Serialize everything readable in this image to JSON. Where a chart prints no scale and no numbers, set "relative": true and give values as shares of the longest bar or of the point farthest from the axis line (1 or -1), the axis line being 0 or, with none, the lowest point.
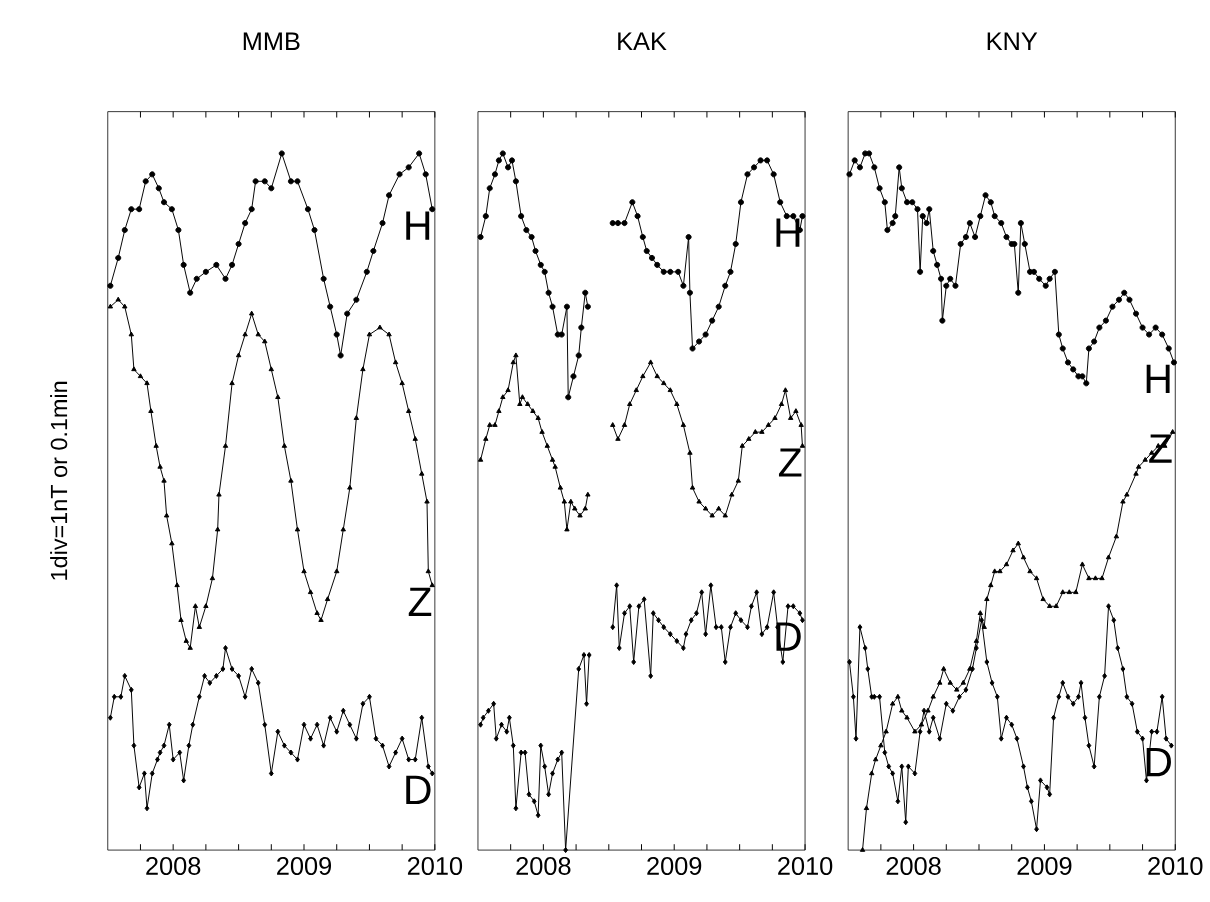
{
  "chart_data": [
    {
      "type": "line",
      "title": "MMB",
      "ylabel": "1div=1nT or 0.1min",
      "relative": true,
      "xlim": [
        2007.5,
        2010.0
      ],
      "xticks": [
        {
          "value": 2007.75,
          "label": null
        },
        2008,
        {
          "value": 2008.25,
          "label": null
        },
        {
          "value": 2008.5,
          "label": null
        },
        {
          "value": 2008.75,
          "label": null
        },
        2009,
        {
          "value": 2009.25,
          "label": null
        },
        {
          "value": 2009.5,
          "label": null
        },
        {
          "value": 2009.75,
          "label": null
        },
        2010
      ],
      "series": [
        {
          "name": "H",
          "color": "#000000",
          "marker": "circle",
          "x": [
            2007.52,
            2007.58,
            2007.63,
            2007.68,
            2007.74,
            2007.79,
            2007.84,
            2007.89,
            2007.93,
            2007.99,
            2008.04,
            2008.08,
            2008.13,
            2008.18,
            2008.25,
            2008.33,
            2008.4,
            2008.45,
            2008.5,
            2008.55,
            2008.6,
            2008.63,
            2008.7,
            2008.75,
            2008.83,
            2008.9,
            2008.95,
            2009.03,
            2009.08,
            2009.15,
            2009.2,
            2009.25,
            2009.28,
            2009.33,
            2009.4,
            2009.48,
            2009.53,
            2009.6,
            2009.65,
            2009.73,
            2009.8,
            2009.88,
            2009.93,
            2009.98
          ],
          "values": [
            0.81,
            0.85,
            0.89,
            0.92,
            0.92,
            0.96,
            0.97,
            0.95,
            0.93,
            0.92,
            0.89,
            0.84,
            0.8,
            0.82,
            0.83,
            0.84,
            0.82,
            0.84,
            0.87,
            0.9,
            0.92,
            0.96,
            0.96,
            0.95,
            1.0,
            0.96,
            0.96,
            0.92,
            0.89,
            0.82,
            0.78,
            0.74,
            0.71,
            0.77,
            0.79,
            0.83,
            0.86,
            0.9,
            0.94,
            0.97,
            0.98,
            1.0,
            0.97,
            0.92
          ]
        },
        {
          "name": "Z",
          "color": "#000000",
          "marker": "triangle",
          "x": [
            2007.52,
            2007.58,
            2007.63,
            2007.68,
            2007.7,
            2007.75,
            2007.8,
            2007.83,
            2007.87,
            2007.9,
            2007.93,
            2007.95,
            2007.99,
            2008.03,
            2008.06,
            2008.1,
            2008.13,
            2008.17,
            2008.2,
            2008.25,
            2008.3,
            2008.34,
            2008.35,
            2008.4,
            2008.45,
            2008.5,
            2008.55,
            2008.6,
            2008.65,
            2008.7,
            2008.75,
            2008.8,
            2008.85,
            2008.9,
            2008.95,
            2009.0,
            2009.05,
            2009.1,
            2009.13,
            2009.18,
            2009.25,
            2009.3,
            2009.35,
            2009.4,
            2009.45,
            2009.5,
            2009.58,
            2009.65,
            2009.7,
            2009.75,
            2009.8,
            2009.85,
            2009.9,
            2009.94,
            2009.95,
            2009.98
          ],
          "values": [
            0.78,
            0.79,
            0.78,
            0.74,
            0.69,
            0.68,
            0.67,
            0.63,
            0.58,
            0.55,
            0.53,
            0.48,
            0.44,
            0.38,
            0.33,
            0.3,
            0.29,
            0.35,
            0.32,
            0.35,
            0.39,
            0.46,
            0.51,
            0.58,
            0.67,
            0.71,
            0.74,
            0.77,
            0.74,
            0.73,
            0.69,
            0.65,
            0.58,
            0.53,
            0.46,
            0.4,
            0.37,
            0.34,
            0.33,
            0.36,
            0.4,
            0.46,
            0.52,
            0.62,
            0.69,
            0.74,
            0.75,
            0.74,
            0.7,
            0.67,
            0.63,
            0.59,
            0.54,
            0.5,
            0.4,
            0.38
          ]
        },
        {
          "name": "D",
          "color": "#000000",
          "marker": "diamond",
          "x": [
            2007.52,
            2007.55,
            2007.6,
            2007.63,
            2007.68,
            2007.7,
            2007.74,
            2007.78,
            2007.8,
            2007.84,
            2007.88,
            2007.9,
            2007.93,
            2007.97,
            2008.0,
            2008.05,
            2008.08,
            2008.12,
            2008.15,
            2008.2,
            2008.24,
            2008.28,
            2008.33,
            2008.38,
            2008.4,
            2008.45,
            2008.5,
            2008.55,
            2008.6,
            2008.65,
            2008.7,
            2008.75,
            2008.8,
            2008.85,
            2008.9,
            2008.95,
            2009.0,
            2009.05,
            2009.1,
            2009.15,
            2009.2,
            2009.25,
            2009.3,
            2009.35,
            2009.4,
            2009.45,
            2009.5,
            2009.55,
            2009.6,
            2009.65,
            2009.7,
            2009.75,
            2009.8,
            2009.85,
            2009.9,
            2009.95,
            2009.98
          ],
          "values": [
            0.19,
            0.22,
            0.22,
            0.25,
            0.23,
            0.15,
            0.09,
            0.11,
            0.06,
            0.11,
            0.13,
            0.14,
            0.15,
            0.18,
            0.13,
            0.14,
            0.1,
            0.15,
            0.18,
            0.22,
            0.25,
            0.24,
            0.25,
            0.26,
            0.29,
            0.26,
            0.25,
            0.22,
            0.26,
            0.24,
            0.18,
            0.11,
            0.17,
            0.15,
            0.14,
            0.13,
            0.18,
            0.16,
            0.18,
            0.15,
            0.19,
            0.17,
            0.2,
            0.18,
            0.16,
            0.21,
            0.22,
            0.16,
            0.15,
            0.12,
            0.14,
            0.16,
            0.13,
            0.13,
            0.19,
            0.12,
            0.11
          ]
        }
      ]
    },
    {
      "type": "line",
      "title": "KAK",
      "relative": true,
      "xlim": [
        2007.5,
        2010.0
      ],
      "xticks": [
        {
          "value": 2007.75,
          "label": null
        },
        2008,
        {
          "value": 2008.25,
          "label": null
        },
        {
          "value": 2008.5,
          "label": null
        },
        {
          "value": 2008.75,
          "label": null
        },
        2009,
        {
          "value": 2009.25,
          "label": null
        },
        {
          "value": 2009.5,
          "label": null
        },
        {
          "value": 2009.75,
          "label": null
        },
        2010
      ],
      "series": [
        {
          "name": "H",
          "color": "#000000",
          "marker": "circle",
          "x": [
            2007.52,
            2007.56,
            2007.59,
            2007.63,
            2007.66,
            2007.69,
            2007.73,
            2007.76,
            2007.79,
            2007.83,
            2007.87,
            2007.91,
            2007.94,
            2007.98,
            2008.01,
            2008.04,
            2008.07,
            2008.11,
            2008.14,
            2008.18,
            2008.19,
            2008.23,
            2008.27,
            2008.29,
            2008.32,
            2008.34,
            2008.45,
            2008.53,
            2008.57,
            2008.62,
            2008.68,
            2008.72,
            2008.76,
            2008.79,
            2008.83,
            2008.87,
            2008.92,
            2008.97,
            2009.03,
            2009.07,
            2009.11,
            2009.12,
            2009.14,
            2009.19,
            2009.24,
            2009.29,
            2009.34,
            2009.39,
            2009.43,
            2009.47,
            2009.51,
            2009.56,
            2009.61,
            2009.66,
            2009.71,
            2009.76,
            2009.81,
            2009.86,
            2009.91,
            2009.96,
            2009.98
          ],
          "values": [
            0.88,
            0.91,
            0.95,
            0.97,
            0.99,
            1.0,
            0.98,
            0.99,
            0.96,
            0.91,
            0.89,
            0.88,
            0.86,
            0.84,
            0.83,
            0.8,
            0.78,
            0.74,
            0.74,
            0.78,
            0.65,
            0.68,
            0.71,
            0.75,
            0.8,
            0.78,
            null,
            0.9,
            0.9,
            0.9,
            0.93,
            0.91,
            0.88,
            0.86,
            0.85,
            0.84,
            0.83,
            0.83,
            0.83,
            0.81,
            0.88,
            0.8,
            0.72,
            0.73,
            0.74,
            0.76,
            0.78,
            0.81,
            0.83,
            0.87,
            0.93,
            0.97,
            0.98,
            0.99,
            0.99,
            0.97,
            0.93,
            0.91,
            0.91,
            0.89,
            0.91
          ]
        },
        {
          "name": "Z",
          "color": "#000000",
          "marker": "triangle",
          "x": [
            2007.52,
            2007.56,
            2007.59,
            2007.63,
            2007.66,
            2007.69,
            2007.73,
            2007.77,
            2007.79,
            2007.82,
            2007.84,
            2007.88,
            2007.92,
            2007.96,
            2007.99,
            2008.03,
            2008.07,
            2008.09,
            2008.13,
            2008.16,
            2008.18,
            2008.21,
            2008.24,
            2008.28,
            2008.32,
            2008.34,
            2008.45,
            2008.53,
            2008.57,
            2008.62,
            2008.66,
            2008.71,
            2008.76,
            2008.82,
            2008.87,
            2008.92,
            2008.97,
            2009.02,
            2009.07,
            2009.12,
            2009.14,
            2009.19,
            2009.24,
            2009.29,
            2009.34,
            2009.39,
            2009.44,
            2009.49,
            2009.52,
            2009.57,
            2009.62,
            2009.67,
            2009.72,
            2009.77,
            2009.82,
            2009.85,
            2009.89,
            2009.93,
            2009.97,
            2009.98
          ],
          "values": [
            0.56,
            0.59,
            0.61,
            0.61,
            0.63,
            0.65,
            0.66,
            0.7,
            0.71,
            0.64,
            0.65,
            0.64,
            0.63,
            0.62,
            0.6,
            0.58,
            0.56,
            0.55,
            0.52,
            0.5,
            0.46,
            0.5,
            0.49,
            0.48,
            0.49,
            0.51,
            null,
            0.61,
            0.59,
            0.61,
            0.64,
            0.66,
            0.68,
            0.7,
            0.68,
            0.67,
            0.66,
            0.64,
            0.61,
            0.57,
            0.52,
            0.5,
            0.49,
            0.48,
            0.49,
            0.48,
            0.51,
            0.53,
            0.58,
            0.59,
            0.6,
            0.6,
            0.61,
            0.62,
            0.64,
            0.66,
            0.62,
            0.63,
            0.61,
            0.58
          ]
        },
        {
          "name": "D",
          "color": "#000000",
          "marker": "diamond",
          "x": [
            2007.52,
            2007.54,
            2007.58,
            2007.62,
            2007.64,
            2007.68,
            2007.72,
            2007.74,
            2007.77,
            2007.79,
            2007.83,
            2007.86,
            2007.89,
            2007.93,
            2007.96,
            2007.98,
            2008.01,
            2008.04,
            2008.07,
            2008.11,
            2008.14,
            2008.17,
            2008.27,
            2008.31,
            2008.33,
            2008.35,
            2008.45,
            2008.53,
            2008.56,
            2008.58,
            2008.62,
            2008.66,
            2008.69,
            2008.73,
            2008.77,
            2008.82,
            2008.84,
            2008.88,
            2008.92,
            2008.97,
            2009.02,
            2009.07,
            2009.09,
            2009.13,
            2009.17,
            2009.21,
            2009.24,
            2009.28,
            2009.32,
            2009.36,
            2009.39,
            2009.43,
            2009.47,
            2009.51,
            2009.56,
            2009.59,
            2009.63,
            2009.67,
            2009.71,
            2009.76,
            2009.79,
            2009.83,
            2009.87,
            2009.91,
            2009.96,
            2009.98
          ],
          "values": [
            0.18,
            0.19,
            0.2,
            0.21,
            0.16,
            0.18,
            0.17,
            0.19,
            0.15,
            0.06,
            0.14,
            0.14,
            0.08,
            0.07,
            0.05,
            0.15,
            0.12,
            0.08,
            0.11,
            0.13,
            0.14,
            0.0,
            0.26,
            0.28,
            0.21,
            0.28,
            null,
            0.32,
            0.38,
            0.29,
            0.34,
            0.35,
            0.27,
            0.35,
            0.36,
            0.25,
            0.34,
            0.33,
            0.32,
            0.31,
            0.3,
            0.29,
            0.31,
            0.33,
            0.34,
            0.37,
            0.31,
            0.38,
            0.32,
            0.32,
            0.27,
            0.32,
            0.34,
            0.33,
            0.32,
            0.35,
            0.37,
            0.31,
            0.32,
            0.37,
            0.32,
            0.27,
            0.35,
            0.35,
            0.34,
            0.33
          ]
        }
      ]
    },
    {
      "type": "line",
      "title": "KNY",
      "relative": true,
      "xlim": [
        2007.5,
        2010.0
      ],
      "xticks": [
        {
          "value": 2007.75,
          "label": null
        },
        2008,
        {
          "value": 2008.25,
          "label": null
        },
        {
          "value": 2008.5,
          "label": null
        },
        {
          "value": 2008.75,
          "label": null
        },
        2009,
        {
          "value": 2009.25,
          "label": null
        },
        {
          "value": 2009.5,
          "label": null
        },
        {
          "value": 2009.75,
          "label": null
        },
        2010
      ],
      "series": [
        {
          "name": "H",
          "color": "#000000",
          "marker": "circle",
          "x": [
            2007.51,
            2007.55,
            2007.59,
            2007.63,
            2007.66,
            2007.7,
            2007.74,
            2007.78,
            2007.8,
            2007.84,
            2007.86,
            2007.89,
            2007.91,
            2007.95,
            2007.99,
            2008.03,
            2008.05,
            2008.07,
            2008.1,
            2008.12,
            2008.15,
            2008.18,
            2008.21,
            2008.22,
            2008.25,
            2008.28,
            2008.32,
            2008.36,
            2008.4,
            2008.43,
            2008.47,
            2008.51,
            2008.55,
            2008.59,
            2008.62,
            2008.67,
            2008.71,
            2008.75,
            2008.77,
            2008.8,
            2008.82,
            2008.85,
            2008.89,
            2008.92,
            2008.96,
            2009.01,
            2009.04,
            2009.08,
            2009.11,
            2009.14,
            2009.18,
            2009.22,
            2009.26,
            2009.29,
            2009.32,
            2009.34,
            2009.38,
            2009.42,
            2009.47,
            2009.52,
            2009.57,
            2009.61,
            2009.65,
            2009.7,
            2009.75,
            2009.8,
            2009.85,
            2009.9,
            2009.95,
            2009.99
          ],
          "values": [
            0.97,
            0.99,
            0.98,
            1.0,
            1.0,
            0.98,
            0.95,
            0.93,
            0.89,
            0.9,
            0.91,
            0.98,
            0.95,
            0.93,
            0.93,
            0.92,
            0.83,
            0.91,
            0.9,
            0.92,
            0.86,
            0.84,
            0.82,
            0.76,
            0.81,
            0.82,
            0.81,
            0.87,
            0.88,
            0.9,
            0.88,
            0.91,
            0.94,
            0.93,
            0.91,
            0.9,
            0.88,
            0.87,
            0.87,
            0.8,
            0.9,
            0.87,
            0.83,
            0.83,
            0.82,
            0.81,
            0.82,
            0.83,
            0.74,
            0.72,
            0.7,
            0.69,
            0.68,
            0.68,
            0.67,
            0.72,
            0.73,
            0.75,
            0.76,
            0.78,
            0.79,
            0.8,
            0.79,
            0.77,
            0.75,
            0.74,
            0.75,
            0.74,
            0.72,
            0.7
          ]
        },
        {
          "name": "Z",
          "color": "#000000",
          "marker": "triangle",
          "x": [
            2007.61,
            2007.64,
            2007.68,
            2007.71,
            2007.75,
            2007.79,
            2007.84,
            2007.88,
            2007.91,
            2007.95,
            2008.01,
            2008.06,
            2008.11,
            2008.15,
            2008.2,
            2008.23,
            2008.28,
            2008.33,
            2008.38,
            2008.43,
            2008.48,
            2008.51,
            2008.54,
            2008.56,
            2008.59,
            2008.62,
            2008.66,
            2008.71,
            2008.76,
            2008.8,
            2008.84,
            2008.89,
            2008.94,
            2008.99,
            2009.04,
            2009.09,
            2009.14,
            2009.19,
            2009.24,
            2009.29,
            2009.34,
            2009.39,
            2009.44,
            2009.49,
            2009.55,
            2009.6,
            2009.63,
            2009.7,
            2009.72,
            2009.77,
            2009.82,
            2009.87,
            2009.92,
            2009.98
          ],
          "values": [
            0.0,
            0.06,
            0.11,
            0.13,
            0.15,
            0.17,
            0.21,
            0.22,
            0.2,
            0.19,
            0.17,
            0.18,
            0.2,
            0.22,
            0.24,
            0.26,
            0.24,
            0.23,
            0.24,
            0.26,
            0.3,
            0.34,
            0.32,
            0.36,
            0.38,
            0.4,
            0.4,
            0.41,
            0.43,
            0.44,
            0.42,
            0.4,
            0.39,
            0.36,
            0.35,
            0.35,
            0.37,
            0.37,
            0.37,
            0.41,
            0.39,
            0.39,
            0.39,
            0.42,
            0.45,
            0.5,
            0.51,
            0.54,
            0.55,
            0.56,
            0.57,
            0.58,
            0.58,
            0.6
          ]
        },
        {
          "name": "D",
          "color": "#000000",
          "marker": "diamond",
          "x": [
            2007.51,
            2007.54,
            2007.56,
            2007.59,
            2007.63,
            2007.65,
            2007.68,
            2007.7,
            2007.74,
            2007.78,
            2007.81,
            2007.84,
            2007.88,
            2007.91,
            2007.94,
            2007.96,
            2008.01,
            2008.05,
            2008.08,
            2008.12,
            2008.15,
            2008.2,
            2008.25,
            2008.3,
            2008.35,
            2008.4,
            2008.45,
            2008.48,
            2008.52,
            2008.56,
            2008.6,
            2008.64,
            2008.67,
            2008.71,
            2008.75,
            2008.79,
            2008.84,
            2008.87,
            2008.9,
            2008.94,
            2008.97,
            2009.02,
            2009.04,
            2009.07,
            2009.11,
            2009.14,
            2009.18,
            2009.22,
            2009.26,
            2009.28,
            2009.31,
            2009.34,
            2009.38,
            2009.42,
            2009.46,
            2009.49,
            2009.53,
            2009.56,
            2009.6,
            2009.63,
            2009.67,
            2009.71,
            2009.75,
            2009.78,
            2009.82,
            2009.86,
            2009.9,
            2009.93,
            2009.97
          ],
          "values": [
            0.27,
            0.22,
            0.16,
            0.32,
            0.29,
            0.26,
            0.22,
            0.22,
            0.22,
            0.14,
            0.12,
            0.11,
            0.07,
            0.12,
            0.04,
            0.12,
            0.11,
            0.17,
            0.2,
            0.17,
            0.19,
            0.16,
            0.21,
            0.2,
            0.22,
            0.23,
            0.26,
            0.29,
            0.33,
            0.27,
            0.24,
            0.22,
            0.16,
            0.19,
            0.18,
            0.16,
            0.12,
            0.09,
            0.07,
            0.03,
            0.1,
            0.09,
            0.08,
            0.19,
            0.22,
            0.24,
            0.22,
            0.21,
            0.22,
            0.24,
            0.19,
            0.15,
            0.12,
            0.22,
            0.25,
            0.35,
            0.33,
            0.29,
            0.26,
            0.22,
            0.21,
            0.17,
            0.16,
            0.1,
            0.17,
            0.17,
            0.22,
            0.16,
            0.15
          ]
        }
      ]
    }
  ]
}
